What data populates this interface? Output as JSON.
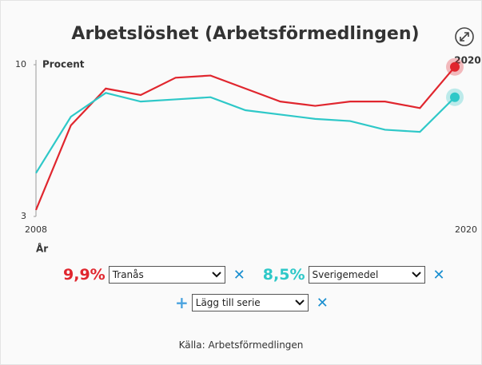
{
  "chart_data": {
    "type": "line",
    "title": "Arbetslöshet (Arbetsförmedlingen)",
    "y_label": "Procent",
    "x_label": "År",
    "x": [
      2008,
      2009,
      2010,
      2011,
      2012,
      2013,
      2014,
      2015,
      2016,
      2017,
      2018,
      2019,
      2020
    ],
    "xlim": [
      2008,
      2020
    ],
    "xticks": [
      2008,
      2020
    ],
    "ylim": [
      3,
      10
    ],
    "yticks": [
      3,
      10
    ],
    "series": [
      {
        "name": "Tranås",
        "color": "#e0262e",
        "value_label": "9,9%",
        "values": [
          3.3,
          7.2,
          8.9,
          8.6,
          9.4,
          9.5,
          8.9,
          8.3,
          8.1,
          8.3,
          8.3,
          8.0,
          9.9
        ]
      },
      {
        "name": "Sverigemedel",
        "color": "#2ec8c8",
        "value_label": "8,5%",
        "values": [
          5.0,
          7.6,
          8.7,
          8.3,
          8.4,
          8.5,
          7.9,
          7.7,
          7.5,
          7.4,
          7.0,
          6.9,
          8.5
        ]
      }
    ],
    "add_series": "Lägg till serie",
    "source": "Källa: Arbetsförmedlingen"
  }
}
